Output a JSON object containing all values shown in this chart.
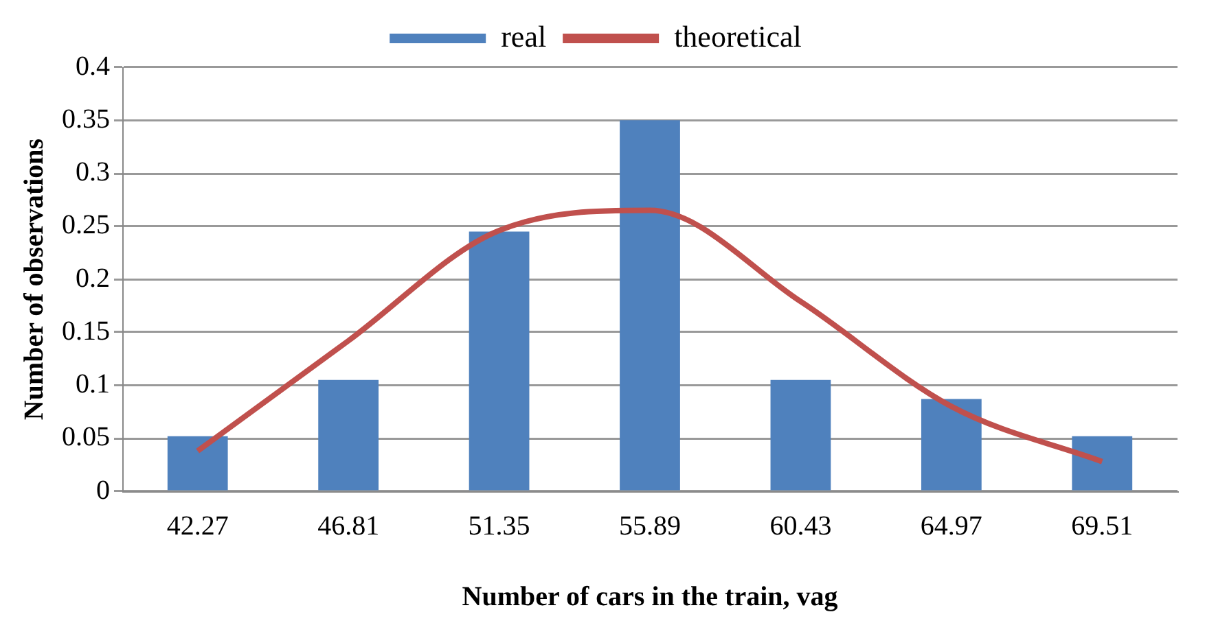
{
  "chart_data": {
    "type": "bar",
    "xlabel": "Number of cars in the train, vag",
    "ylabel": "Number of observations",
    "categories": [
      "42.27",
      "46.81",
      "51.35",
      "55.89",
      "60.43",
      "64.97",
      "69.51"
    ],
    "series": [
      {
        "name": "real",
        "color": "#4f81bd",
        "values": [
          0.052,
          0.105,
          0.245,
          0.35,
          0.105,
          0.087,
          0.052
        ]
      },
      {
        "name": "theoretical",
        "type": "line",
        "color": "#c0504d",
        "values": [
          0.038,
          0.142,
          0.246,
          0.265,
          0.179,
          0.08,
          0.028
        ]
      }
    ],
    "ylim": [
      0,
      0.4
    ],
    "yticks": [
      0,
      0.05,
      0.1,
      0.15,
      0.2,
      0.25,
      0.3,
      0.35,
      0.4
    ],
    "grid": "y",
    "legend": "top",
    "marker": "none"
  }
}
